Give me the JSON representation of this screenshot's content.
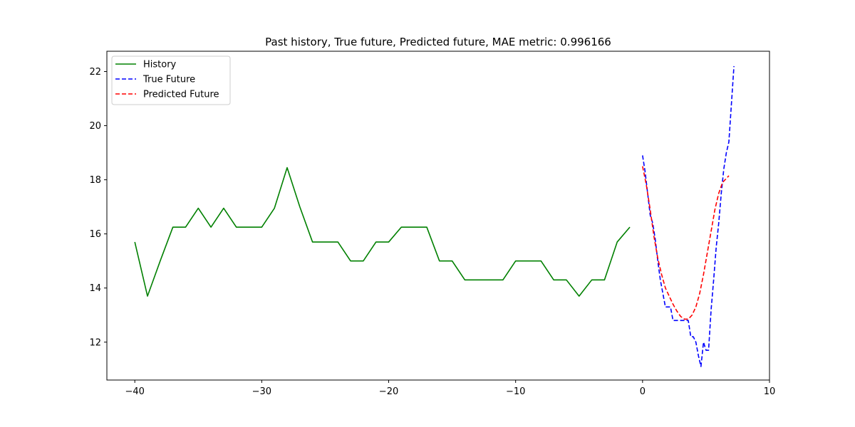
{
  "chart_data": {
    "type": "line",
    "title": "Past history, True future, Predicted future, MAE metric: 0.996166",
    "xlabel": "",
    "ylabel": "",
    "xlim": [
      -42.2,
      10
    ],
    "ylim": [
      10.6,
      22.75
    ],
    "x_ticks": [
      -40,
      -30,
      -20,
      -10,
      0,
      10
    ],
    "x_tick_labels": [
      "−40",
      "−30",
      "−20",
      "−10",
      "0",
      "10"
    ],
    "y_ticks": [
      12,
      14,
      16,
      18,
      20,
      22
    ],
    "y_tick_labels": [
      "12",
      "14",
      "16",
      "18",
      "20",
      "22"
    ],
    "grid": false,
    "legend": {
      "position": "top-left"
    },
    "series": [
      {
        "name": "History",
        "color": "#008000",
        "style": "solid",
        "points": [
          [
            -40,
            15.7
          ],
          [
            -39,
            13.7
          ],
          [
            -38,
            15.0
          ],
          [
            -37,
            16.25
          ],
          [
            -36,
            16.25
          ],
          [
            -35,
            16.95
          ],
          [
            -34,
            16.25
          ],
          [
            -33,
            16.95
          ],
          [
            -32,
            16.25
          ],
          [
            -31,
            16.25
          ],
          [
            -30,
            16.25
          ],
          [
            -29,
            16.95
          ],
          [
            -28,
            18.45
          ],
          [
            -27,
            17.0
          ],
          [
            -26,
            15.7
          ],
          [
            -25,
            15.7
          ],
          [
            -24,
            15.7
          ],
          [
            -23,
            15.0
          ],
          [
            -22,
            15.0
          ],
          [
            -21,
            15.7
          ],
          [
            -20,
            15.7
          ],
          [
            -19,
            16.25
          ],
          [
            -18,
            16.25
          ],
          [
            -17,
            16.25
          ],
          [
            -16,
            15.0
          ],
          [
            -15,
            15.0
          ],
          [
            -14,
            14.3
          ],
          [
            -13,
            14.3
          ],
          [
            -12,
            14.3
          ],
          [
            -11,
            14.3
          ],
          [
            -10,
            15.0
          ],
          [
            -9,
            15.0
          ],
          [
            -8,
            15.0
          ],
          [
            -7,
            14.3
          ],
          [
            -6,
            14.3
          ],
          [
            -5,
            13.7
          ],
          [
            -4,
            14.3
          ],
          [
            -3,
            14.3
          ],
          [
            -2,
            15.7
          ],
          [
            -1,
            16.25
          ]
        ]
      },
      {
        "name": "True Future",
        "color": "#0000ff",
        "style": "dashed",
        "points": [
          [
            0.0,
            18.9
          ],
          [
            0.2,
            18.3
          ],
          [
            0.4,
            17.5
          ],
          [
            0.6,
            16.7
          ],
          [
            0.8,
            16.4
          ],
          [
            1.0,
            15.8
          ],
          [
            1.2,
            15.0
          ],
          [
            1.4,
            14.3
          ],
          [
            1.6,
            13.8
          ],
          [
            1.8,
            13.3
          ],
          [
            2.0,
            13.3
          ],
          [
            2.2,
            13.3
          ],
          [
            2.4,
            12.8
          ],
          [
            2.6,
            12.8
          ],
          [
            2.8,
            12.8
          ],
          [
            3.0,
            12.8
          ],
          [
            3.2,
            12.8
          ],
          [
            3.4,
            12.8
          ],
          [
            3.6,
            12.8
          ],
          [
            3.8,
            12.2
          ],
          [
            4.0,
            12.2
          ],
          [
            4.2,
            12.0
          ],
          [
            4.4,
            11.5
          ],
          [
            4.6,
            11.1
          ],
          [
            4.8,
            12.0
          ],
          [
            5.0,
            11.7
          ],
          [
            5.2,
            11.7
          ],
          [
            5.4,
            13.2
          ],
          [
            5.6,
            14.3
          ],
          [
            5.8,
            15.5
          ],
          [
            6.0,
            16.4
          ],
          [
            6.2,
            17.5
          ],
          [
            6.4,
            18.4
          ],
          [
            6.6,
            19.0
          ],
          [
            6.8,
            19.4
          ],
          [
            7.0,
            20.8
          ],
          [
            7.2,
            22.2
          ]
        ]
      },
      {
        "name": "Predicted Future",
        "color": "#ff0000",
        "style": "dashed",
        "points": [
          [
            0.0,
            18.5
          ],
          [
            0.3,
            17.8
          ],
          [
            0.6,
            16.9
          ],
          [
            0.9,
            15.9
          ],
          [
            1.2,
            15.1
          ],
          [
            1.5,
            14.5
          ],
          [
            1.8,
            14.0
          ],
          [
            2.1,
            13.7
          ],
          [
            2.4,
            13.4
          ],
          [
            2.7,
            13.15
          ],
          [
            3.0,
            12.95
          ],
          [
            3.3,
            12.85
          ],
          [
            3.6,
            12.85
          ],
          [
            3.9,
            13.0
          ],
          [
            4.2,
            13.3
          ],
          [
            4.5,
            13.8
          ],
          [
            4.8,
            14.5
          ],
          [
            5.1,
            15.3
          ],
          [
            5.4,
            16.1
          ],
          [
            5.7,
            16.9
          ],
          [
            6.0,
            17.5
          ],
          [
            6.3,
            17.9
          ],
          [
            6.6,
            18.05
          ],
          [
            6.8,
            18.15
          ]
        ]
      }
    ]
  }
}
